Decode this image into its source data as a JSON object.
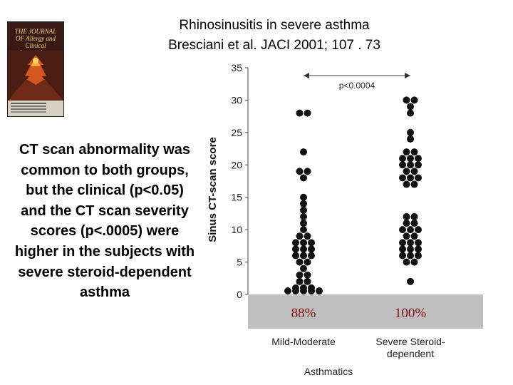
{
  "slide": {
    "title_line1": "Rhinosinusitis in severe asthma",
    "title_line2": "Bresciani et al. JACI 2001; 107 . 73",
    "body_text": "CT scan abnormality was common to both groups, but the clinical (p<0.05) and the CT scan severity scores (p<.0005) were higher in the subjects with severe steroid-dependent asthma"
  },
  "journal_cover": {
    "title": "THE JOURNAL OF Allergy and Clinical Immunology"
  },
  "chart_data": {
    "type": "scatter",
    "ylabel": "Sinus CT-scan score",
    "xlabel": "Asthmatics",
    "categories": [
      "Mild-Moderate",
      "Severe Steroid-dependent"
    ],
    "ylim": [
      0,
      35
    ],
    "yticks": [
      0,
      5,
      10,
      15,
      20,
      25,
      30,
      35
    ],
    "significance": "p<0.0004",
    "percent_labels": [
      "88%",
      "100%"
    ],
    "series": [
      {
        "category": "Mild-Moderate",
        "values": [
          0,
          0,
          0,
          0,
          0,
          1,
          1,
          1,
          2,
          2,
          3,
          3,
          4,
          5,
          5,
          6,
          6,
          6,
          7,
          7,
          7,
          8,
          8,
          8,
          9,
          9,
          10,
          11,
          12,
          13,
          14,
          15,
          18,
          19,
          19,
          22,
          28,
          28
        ]
      },
      {
        "category": "Severe Steroid-dependent",
        "values": [
          2,
          5,
          5,
          6,
          6,
          6,
          7,
          7,
          7,
          8,
          8,
          8,
          9,
          9,
          10,
          10,
          10,
          11,
          11,
          12,
          12,
          17,
          17,
          18,
          18,
          18,
          19,
          19,
          20,
          20,
          20,
          21,
          21,
          21,
          22,
          22,
          24,
          25,
          28,
          29,
          30,
          30
        ]
      }
    ]
  }
}
